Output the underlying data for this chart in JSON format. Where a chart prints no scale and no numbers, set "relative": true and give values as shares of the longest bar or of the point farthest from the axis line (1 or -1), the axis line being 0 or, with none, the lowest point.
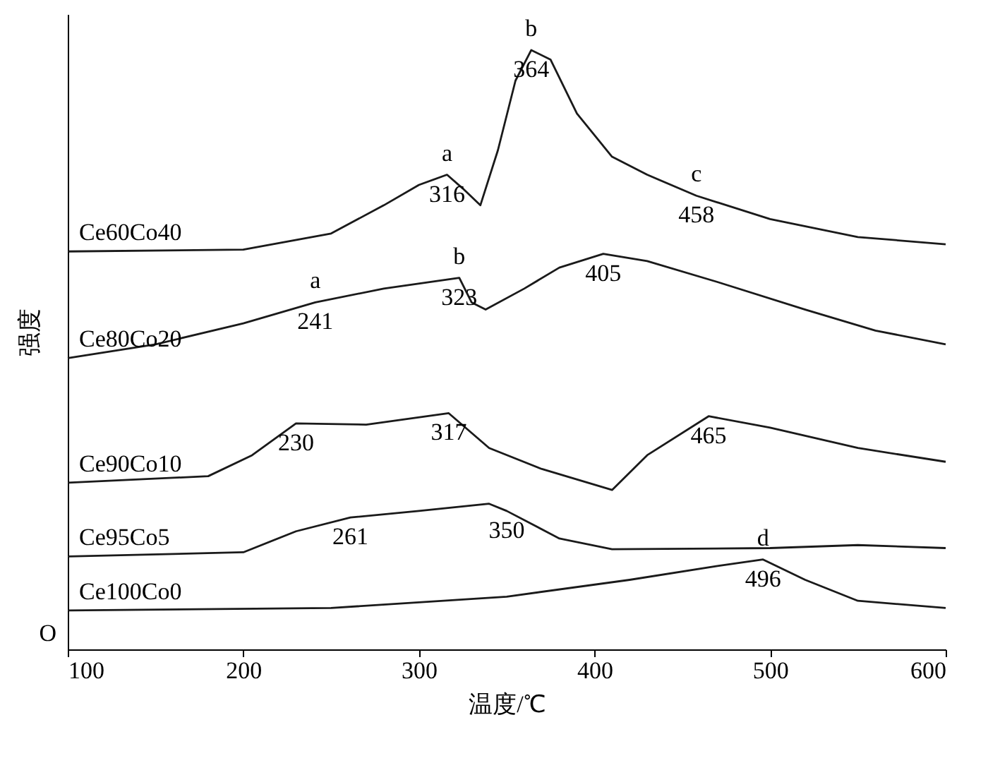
{
  "chart_data": {
    "type": "line",
    "relative": true,
    "xlabel": "温度/℃",
    "ylabel": "强度",
    "xlim": [
      100,
      600
    ],
    "xticks": [
      100,
      200,
      300,
      400,
      500,
      600
    ],
    "legend": false,
    "grid": false,
    "marker": "none",
    "line_style": "solid",
    "series": [
      {
        "name": "Ce60Co40",
        "color": "#1a1a1a",
        "x": [
          100,
          200,
          250,
          280,
          300,
          316,
          325,
          335,
          345,
          355,
          364,
          375,
          390,
          410,
          430,
          458,
          500,
          550,
          600
        ],
        "values": [
          0.664,
          0.667,
          0.694,
          0.741,
          0.775,
          0.792,
          0.769,
          0.741,
          0.833,
          0.949,
          1,
          0.984,
          0.894,
          0.822,
          0.792,
          0.757,
          0.718,
          0.688,
          0.676
        ]
      },
      {
        "name": "Ce80Co20",
        "color": "#1a1a1a",
        "x": [
          100,
          150,
          200,
          241,
          280,
          323,
          330,
          338,
          360,
          380,
          405,
          430,
          470,
          520,
          560,
          600
        ],
        "values": [
          0.486,
          0.509,
          0.544,
          0.579,
          0.602,
          0.62,
          0.579,
          0.567,
          0.602,
          0.637,
          0.66,
          0.648,
          0.613,
          0.567,
          0.532,
          0.509
        ]
      },
      {
        "name": "Ce90Co10",
        "color": "#1a1a1a",
        "x": [
          100,
          180,
          205,
          230,
          270,
          317,
          340,
          370,
          410,
          430,
          465,
          500,
          550,
          600
        ],
        "values": [
          0.278,
          0.289,
          0.324,
          0.377,
          0.375,
          0.394,
          0.336,
          0.301,
          0.266,
          0.324,
          0.389,
          0.37,
          0.336,
          0.313
        ]
      },
      {
        "name": "Ce95Co5",
        "color": "#1a1a1a",
        "x": [
          100,
          200,
          230,
          261,
          300,
          340,
          350,
          380,
          410,
          500,
          550,
          600
        ],
        "values": [
          0.155,
          0.162,
          0.197,
          0.22,
          0.231,
          0.243,
          0.231,
          0.185,
          0.167,
          0.169,
          0.174,
          0.169
        ]
      },
      {
        "name": "Ce100Co0",
        "color": "#1a1a1a",
        "x": [
          100,
          250,
          350,
          420,
          470,
          496,
          520,
          550,
          600
        ],
        "values": [
          0.065,
          0.069,
          0.088,
          0.116,
          0.139,
          0.15,
          0.116,
          0.081,
          0.069
        ]
      }
    ],
    "annotations": [
      "O",
      {
        "text": "316",
        "x": 316,
        "y": 0.792
      },
      {
        "text": "a",
        "x": 316,
        "y": 0.792
      },
      {
        "text": "364",
        "x": 364,
        "y": 1
      },
      {
        "text": "b",
        "x": 364,
        "y": 1
      },
      {
        "text": "458",
        "x": 458,
        "y": 0.757
      },
      {
        "text": "c",
        "x": 458,
        "y": 0.757
      },
      {
        "text": "323",
        "x": 323,
        "y": 0.62
      },
      {
        "text": "b",
        "x": 323,
        "y": 0.62
      },
      {
        "text": "241",
        "x": 241,
        "y": 0.579
      },
      {
        "text": "a",
        "x": 241,
        "y": 0.579
      },
      {
        "text": "405",
        "x": 405,
        "y": 0.66
      },
      {
        "text": "230",
        "x": 230,
        "y": 0.377
      },
      {
        "text": "317",
        "x": 317,
        "y": 0.394
      },
      {
        "text": "465",
        "x": 465,
        "y": 0.389
      },
      {
        "text": "261",
        "x": 261,
        "y": 0.22
      },
      {
        "text": "350",
        "x": 350,
        "y": 0.231
      },
      {
        "text": "496",
        "x": 496,
        "y": 0.15
      },
      {
        "text": "d",
        "x": 496,
        "y": 0.15
      }
    ]
  }
}
